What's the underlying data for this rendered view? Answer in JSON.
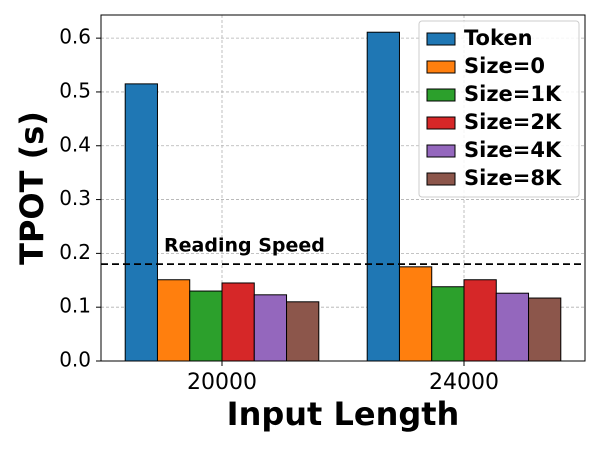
{
  "chart_data": {
    "type": "bar",
    "x_label": "Input Length",
    "y_label": "TPOT (s)",
    "categories": [
      "20000",
      "24000"
    ],
    "series": [
      {
        "name": "Token",
        "color": "#1f77b4",
        "values": [
          0.515,
          0.611
        ]
      },
      {
        "name": "Size=0",
        "color": "#ff7f0e",
        "values": [
          0.151,
          0.175
        ]
      },
      {
        "name": "Size=1K",
        "color": "#2ca02c",
        "values": [
          0.13,
          0.138
        ]
      },
      {
        "name": "Size=2K",
        "color": "#d62728",
        "values": [
          0.145,
          0.151
        ]
      },
      {
        "name": "Size=4K",
        "color": "#9467bd",
        "values": [
          0.123,
          0.126
        ]
      },
      {
        "name": "Size=8K",
        "color": "#8c564b",
        "values": [
          0.11,
          0.117
        ]
      }
    ],
    "reference_line": {
      "value": 0.18,
      "label": "Reading Speed"
    },
    "ylim": [
      0,
      0.643
    ],
    "yticks": [
      {
        "value": 0,
        "label": "0.0"
      },
      0.1,
      0.2,
      0.3,
      0.4,
      0.5,
      0.6
    ],
    "grid": true,
    "legend": "upper right"
  }
}
